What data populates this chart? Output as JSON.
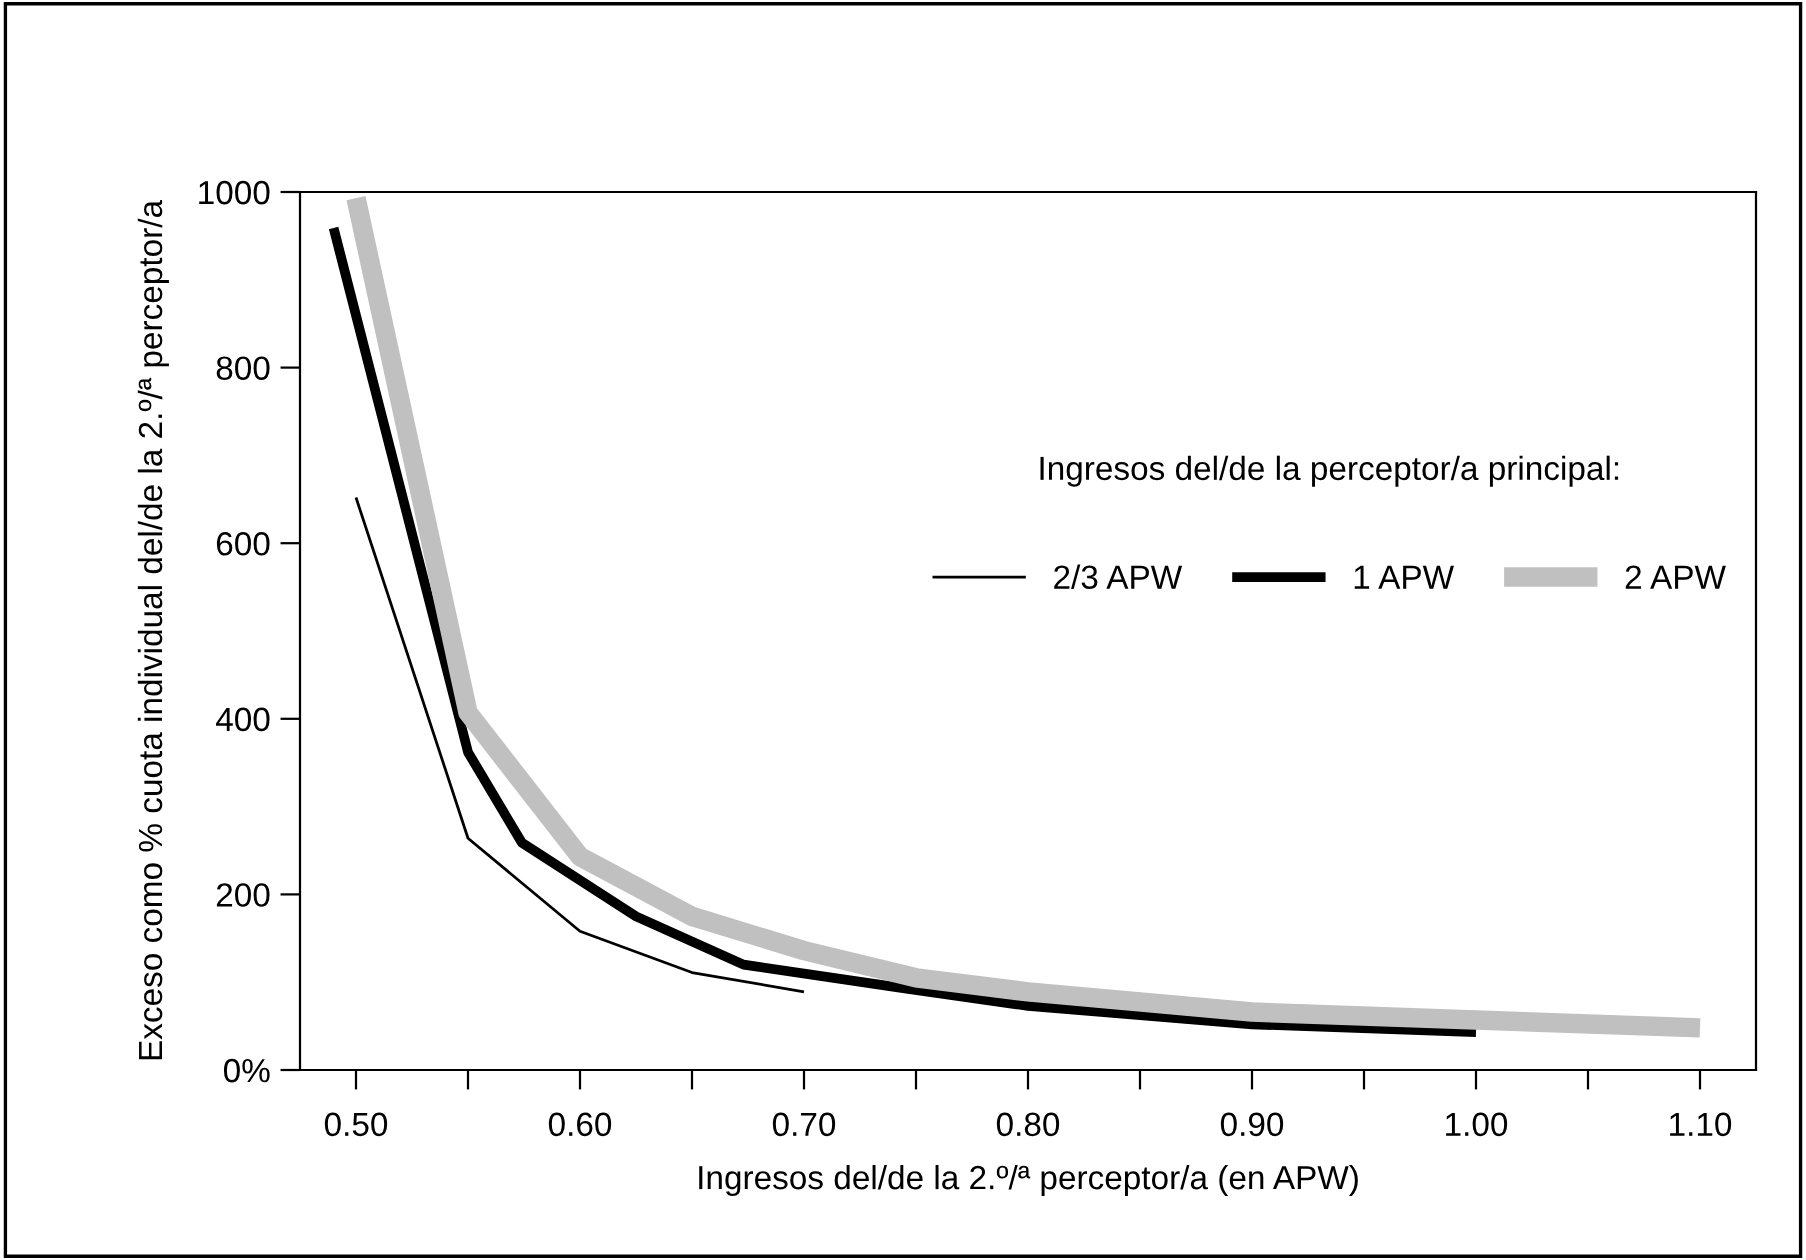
{
  "chart_data": {
    "type": "line",
    "xlabel": "Ingresos del/de la 2.º/ª perceptor/a (en APW)",
    "ylabel": "Exceso como % cuota individual del/de la 2.º/ª perceptor/a",
    "legend_title": "Ingresos del/de la perceptor/a principal:",
    "legend": "right",
    "grid": false,
    "marker": "none",
    "line_style": "solid",
    "xlim": [
      0.475,
      1.125
    ],
    "ylim": [
      0,
      1000
    ],
    "xticks": [
      {
        "value": 0.5,
        "label": "0.50"
      },
      {
        "value": 0.55,
        "label": null
      },
      {
        "value": 0.6,
        "label": "0.60"
      },
      {
        "value": 0.65,
        "label": null
      },
      {
        "value": 0.7,
        "label": "0.70"
      },
      {
        "value": 0.75,
        "label": null
      },
      {
        "value": 0.8,
        "label": "0.80"
      },
      {
        "value": 0.85,
        "label": null
      },
      {
        "value": 0.9,
        "label": "0.90"
      },
      {
        "value": 0.95,
        "label": null
      },
      {
        "value": 1.0,
        "label": "1.00"
      },
      {
        "value": 1.05,
        "label": null
      },
      {
        "value": 1.1,
        "label": "1.10"
      }
    ],
    "yticks": [
      {
        "value": 0,
        "label": "0%"
      },
      200,
      400,
      600,
      800,
      1000
    ],
    "series": [
      {
        "name": "2/3 APW",
        "color": "#000000",
        "x": [
          0.5,
          0.55,
          0.6,
          0.65,
          0.7
        ],
        "values": [
          652,
          264,
          158,
          111,
          89
        ]
      },
      {
        "name": "1 APW",
        "color": "#000000",
        "x": [
          0.49,
          0.55,
          0.574,
          0.625,
          0.673,
          0.745,
          0.8,
          0.9,
          1.0
        ],
        "values": [
          959,
          362,
          259,
          175,
          120,
          93,
          73,
          52,
          43
        ]
      },
      {
        "name": "2 APW",
        "color": "#c0c0c0",
        "x": [
          0.5,
          0.55,
          0.6,
          0.65,
          0.7,
          0.75,
          0.8,
          0.9,
          1.0,
          1.1
        ],
        "values": [
          993,
          407,
          243,
          175,
          136,
          105,
          89,
          66,
          57,
          48
        ]
      }
    ]
  }
}
